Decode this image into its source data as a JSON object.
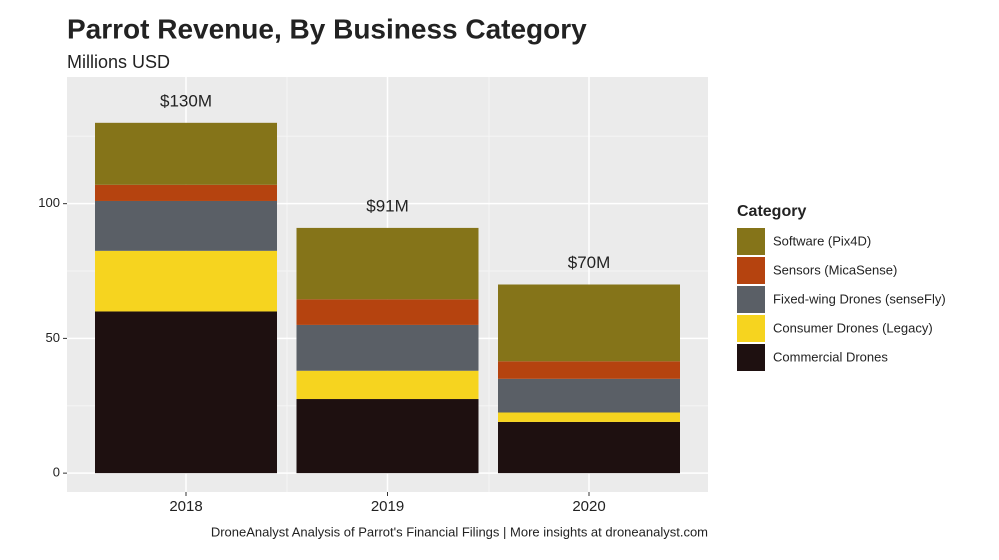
{
  "chart_data": {
    "type": "stacked_bar",
    "title": "Parrot Revenue, By Business Category",
    "subtitle": "Millions USD",
    "caption": "DroneAnalyst Analysis of Parrot's Financial Filings  |  More insights at droneanalyst.com",
    "legend_title": "Category",
    "legend_position": "right",
    "categories": [
      "2018",
      "2019",
      "2020"
    ],
    "series": [
      {
        "name": "Commercial Drones",
        "color": "#1e1010",
        "values": [
          60,
          27.5,
          19
        ]
      },
      {
        "name": "Consumer Drones (Legacy)",
        "color": "#f6d41f",
        "values": [
          22.5,
          10.5,
          3.5
        ]
      },
      {
        "name": "Fixed-wing Drones (senseFly)",
        "color": "#5a5f66",
        "values": [
          18.5,
          17,
          12.5
        ]
      },
      {
        "name": "Sensors (MicaSense)",
        "color": "#b5430f",
        "values": [
          6,
          9.5,
          6.5
        ]
      },
      {
        "name": "Software (Pix4D)",
        "color": "#857419",
        "values": [
          23,
          26.5,
          28.5
        ]
      }
    ],
    "totals": {
      "values": [
        130,
        91,
        70
      ],
      "value_labels": [
        "$130M",
        "$91M",
        "$70M"
      ]
    },
    "ylim": [
      -7,
      147
    ],
    "yticks": [
      0,
      50,
      100
    ],
    "minor_yticks": [
      25,
      75,
      125
    ],
    "grid": true
  }
}
